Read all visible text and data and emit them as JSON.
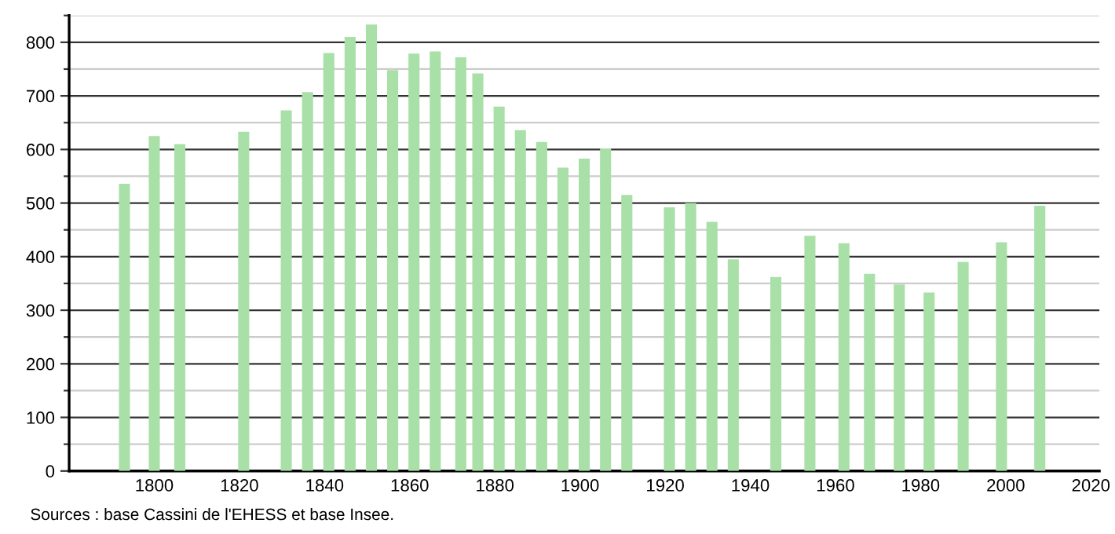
{
  "chart_data": {
    "type": "bar",
    "x": [
      1793,
      1800,
      1806,
      1821,
      1831,
      1836,
      1841,
      1846,
      1851,
      1856,
      1861,
      1866,
      1872,
      1876,
      1881,
      1886,
      1891,
      1896,
      1901,
      1906,
      1911,
      1921,
      1926,
      1931,
      1936,
      1946,
      1954,
      1962,
      1968,
      1975,
      1982,
      1990,
      1999,
      2008
    ],
    "values": [
      536,
      625,
      610,
      633,
      673,
      707,
      780,
      810,
      833,
      748,
      779,
      783,
      772,
      742,
      680,
      636,
      614,
      566,
      583,
      602,
      515,
      492,
      500,
      465,
      395,
      362,
      439,
      425,
      368,
      348,
      333,
      390,
      427,
      495
    ],
    "color": "#a8e0a8",
    "xlim": [
      1780,
      2022
    ],
    "xticks": [
      1800,
      1820,
      1840,
      1860,
      1880,
      1900,
      1920,
      1940,
      1960,
      1980,
      2000,
      2020
    ],
    "ylim": [
      0,
      850
    ],
    "yticks": [
      0,
      {
        "value": 50,
        "label": null
      },
      100,
      {
        "value": 150,
        "label": null
      },
      200,
      {
        "value": 250,
        "label": null
      },
      300,
      {
        "value": 350,
        "label": null
      },
      400,
      {
        "value": 450,
        "label": null
      },
      500,
      {
        "value": 550,
        "label": null
      },
      600,
      {
        "value": 650,
        "label": null
      },
      700,
      {
        "value": 750,
        "label": null
      },
      800,
      {
        "value": 850,
        "label": null
      }
    ],
    "grid": "y",
    "annotations": [
      "Sources : base Cassini de l'EHESS et base Insee."
    ]
  }
}
